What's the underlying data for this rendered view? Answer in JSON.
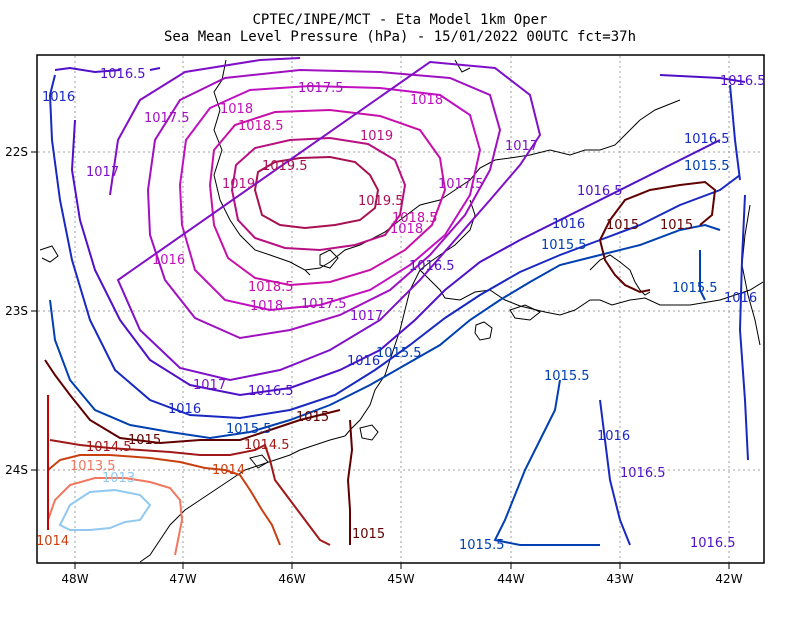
{
  "header": {
    "line1": "CPTEC/INPE/MCT -  Eta Model 1km Oper",
    "line2": "Sea Mean Level Pressure (hPa) - 15/01/2022 00UTC fct=37h"
  },
  "axes": {
    "lon_ticks": [
      "48W",
      "47W",
      "46W",
      "45W",
      "44W",
      "43W",
      "42W"
    ],
    "lat_ticks": [
      "22S",
      "23S",
      "24S"
    ]
  },
  "contour_labels": [
    "1016.5",
    "1016",
    "1017.5",
    "1017",
    "1018",
    "1018.5",
    "1019",
    "1019.5",
    "1017",
    "1017.5",
    "1018",
    "1019",
    "1019.5",
    "1018.5",
    "1018",
    "1017.5",
    "1016.5",
    "1016",
    "1018.5",
    "1018",
    "1017.5",
    "1017",
    "1016.5",
    "1016",
    "1015.5",
    "1015",
    "1015",
    "1016.5",
    "1016",
    "1015.5",
    "1015.5",
    "1017",
    "1016.5",
    "1016",
    "1015.5",
    "1015",
    "1014.5",
    "1015",
    "1014.5",
    "1014",
    "1013.5",
    "1013",
    "1014",
    "1015",
    "1015.5",
    "1015.5",
    "1016",
    "1016.5",
    "1016.5",
    "1016.5",
    "1016",
    "1015.5"
  ],
  "colors": {
    "1013": "#90c8f0",
    "1013.5": "#f07860",
    "1014": "#c84010",
    "1014.5": "#a01818",
    "1015": "#600000",
    "1015.5": "#0040b0",
    "1016": "#1828c0",
    "1016.5": "#5010c8",
    "1017": "#8010c8",
    "1017.5": "#a010c0",
    "1018": "#c010c0",
    "1018.5": "#c810a8",
    "1019": "#b81080",
    "1019.5": "#a81050"
  }
}
